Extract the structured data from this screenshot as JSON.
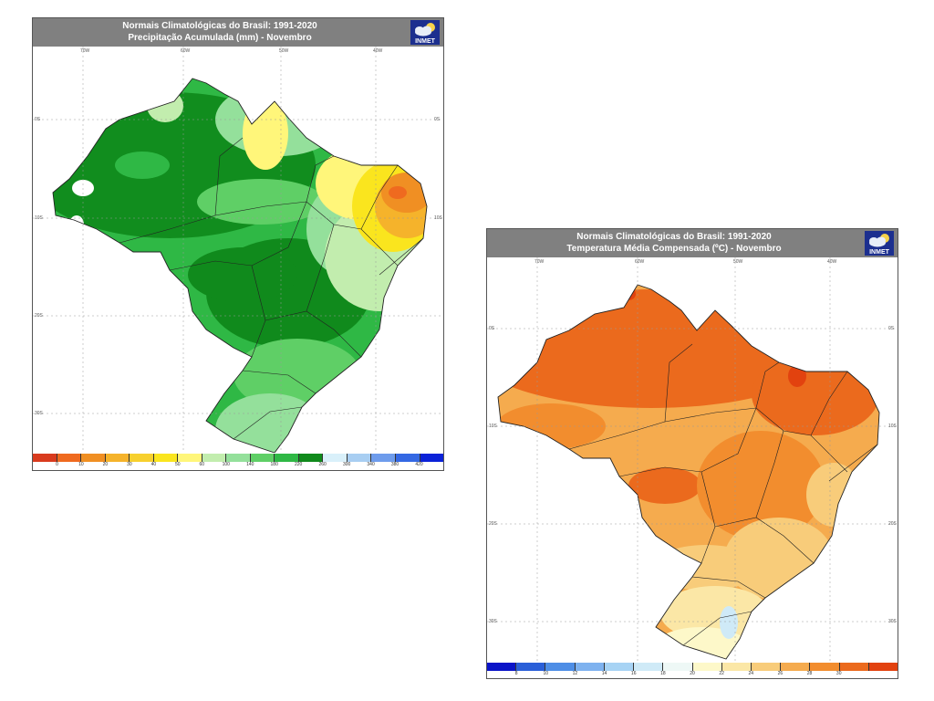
{
  "precip": {
    "title1": "Normais Climatológicas do Brasil: 1991-2020",
    "title2": "Precipitação Acumulada (mm) - Novembro",
    "logo": "INMET",
    "top_coords": [
      "70W",
      "60W",
      "50W",
      "40W"
    ],
    "lat_coords": [
      "0S",
      "10S",
      "20S",
      "30S"
    ],
    "colorbar": {
      "colors": [
        "#d93b1e",
        "#ef6a1f",
        "#f08f23",
        "#f5b32b",
        "#f7d02e",
        "#fae51e",
        "#fff67a",
        "#c2edae",
        "#94e09b",
        "#5fcf66",
        "#2fb845",
        "#108a1c",
        "#d9f0fa",
        "#a8cef2",
        "#6e9cec",
        "#3468e3",
        "#0b22d8"
      ],
      "ticks": [
        "0",
        "10",
        "20",
        "30",
        "40",
        "50",
        "60",
        "100",
        "140",
        "180",
        "220",
        "260",
        "300",
        "340",
        "380",
        "420"
      ]
    }
  },
  "temp": {
    "title1": "Normais Climatológicas do Brasil: 1991-2020",
    "title2": "Temperatura Média Compensada (ºC) - Novembro",
    "logo": "INMET",
    "top_coords": [
      "70W",
      "60W",
      "50W",
      "40W"
    ],
    "lat_coords": [
      "0S",
      "10S",
      "20S",
      "30S"
    ],
    "colorbar": {
      "colors": [
        "#0a14c8",
        "#2a5fd8",
        "#4e8ee6",
        "#7eb2ef",
        "#a7d3f4",
        "#cfeaf7",
        "#eef8f6",
        "#fdf8c9",
        "#fbe7a6",
        "#f8cc7a",
        "#f5ab4e",
        "#f28d2e",
        "#eb6a1d",
        "#e2420f"
      ],
      "ticks": [
        "8",
        "10",
        "12",
        "14",
        "16",
        "18",
        "20",
        "22",
        "24",
        "26",
        "28",
        "30"
      ]
    }
  }
}
